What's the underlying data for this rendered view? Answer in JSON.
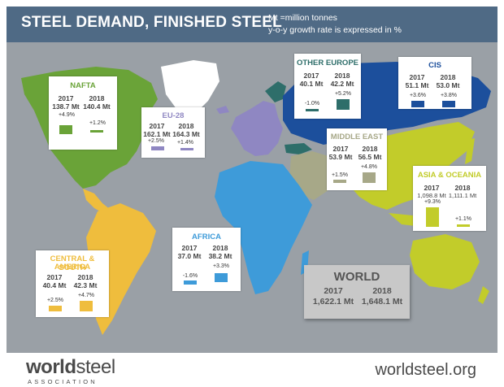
{
  "header": {
    "title": "STEEL DEMAND, FINISHED STEEL",
    "note1": "Mt =million tonnes",
    "note2": "y-o-y growth rate is expressed in %"
  },
  "regions": {
    "nafta": {
      "name": "NAFTA",
      "color": "#6aa338",
      "y1": "2017",
      "y2": "2018",
      "v1": "138.7 Mt",
      "v2": "140.4 Mt",
      "g1": "+4.9%",
      "g2": "+1.2%"
    },
    "eu28": {
      "name": "EU-28",
      "color": "#8f87c2",
      "y1": "2017",
      "y2": "2018",
      "v1": "162.1 Mt",
      "v2": "164.3 Mt",
      "g1": "+2.5%",
      "g2": "+1.4%"
    },
    "other_europe": {
      "name": "OTHER EUROPE",
      "color": "#2e6e6a",
      "y1": "2017",
      "y2": "2018",
      "v1": "40.1 Mt",
      "v2": "42.2 Mt",
      "g1": "-1.0%",
      "g2": "+5.2%"
    },
    "cis": {
      "name": "CIS",
      "color": "#1c4f9c",
      "y1": "2017",
      "y2": "2018",
      "v1": "51.1 Mt",
      "v2": "53.0 Mt",
      "g1": "+3.6%",
      "g2": "+3.8%"
    },
    "middle_east": {
      "name": "MIDDLE EAST",
      "color": "#a7a888",
      "y1": "2017",
      "y2": "2018",
      "v1": "53.9 Mt",
      "v2": "56.5 Mt",
      "g1": "+1.5%",
      "g2": "+4.8%"
    },
    "asia": {
      "name": "ASIA & OCEANIA",
      "color": "#c2cc2a",
      "y1": "2017",
      "y2": "2018",
      "v1": "1,098.8 Mt",
      "v2": "1,111.1 Mt",
      "g1": "+9.3%",
      "g2": "+1.1%"
    },
    "africa": {
      "name": "AFRICA",
      "color": "#3e9bd9",
      "y1": "2017",
      "y2": "2018",
      "v1": "37.0 Mt",
      "v2": "38.2 Mt",
      "g1": "-1.6%",
      "g2": "+3.3%"
    },
    "csa": {
      "name1": "CENTRAL & SOUTH",
      "name2": "AMERICA",
      "color": "#efbd3d",
      "y1": "2017",
      "y2": "2018",
      "v1": "40.4 Mt",
      "v2": "42.3 Mt",
      "g1": "+2.5%",
      "g2": "+4.7%"
    }
  },
  "world": {
    "name": "WORLD",
    "y1": "2017",
    "y2": "2018",
    "v1": "1,622.1 Mt",
    "v2": "1,648.1 Mt"
  },
  "footer": {
    "logo_bold": "world",
    "logo_rest": "steel",
    "logo_sub": "ASSOCIATION",
    "site": "worldsteel.org"
  },
  "colors": {
    "ocean": "#9aa0a6",
    "header": "#4f6a85",
    "greenland": "#ffffff"
  }
}
